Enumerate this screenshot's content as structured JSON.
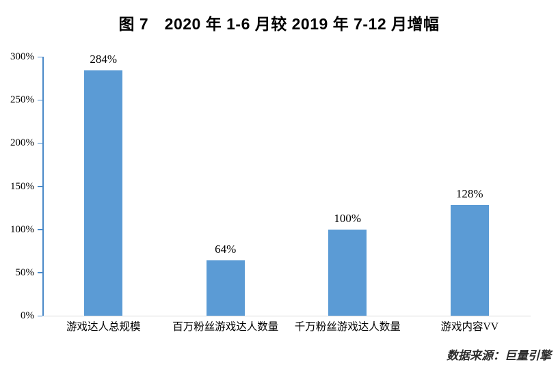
{
  "title": "图 7　2020 年 1-6 月较 2019 年 7-12 月增幅",
  "source": "数据来源：巨量引擎",
  "colors": {
    "bar": "#5B9BD5",
    "axis": "#4A89C8",
    "baseline": "#D9D9D9",
    "text": "#000000",
    "source_text": "#2b2b2b"
  },
  "chart_data": {
    "type": "bar",
    "title": "图 7　2020 年 1-6 月较 2019 年 7-12 月增幅",
    "categories": [
      "游戏达人总规模",
      "百万粉丝游戏达人数量",
      "千万粉丝游戏达人数量",
      "游戏内容VV"
    ],
    "values": [
      284,
      64,
      100,
      128
    ],
    "data_labels": [
      "284%",
      "64%",
      "100%",
      "128%"
    ],
    "xlabel": "",
    "ylabel": "",
    "ylim": [
      0,
      300
    ],
    "ytick_step": 50,
    "ytick_labels": [
      "0%",
      "50%",
      "100%",
      "150%",
      "200%",
      "250%",
      "300%"
    ],
    "grid": false,
    "legend": false,
    "source_note": "数据来源：巨量引擎"
  }
}
